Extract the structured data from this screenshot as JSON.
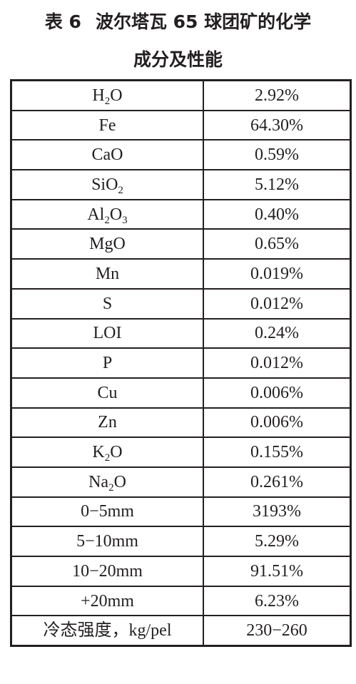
{
  "caption": {
    "label": "表 6",
    "title_line1": "波尔塔瓦 65 球团矿的化学",
    "title_line2": "成分及性能"
  },
  "rows": [
    {
      "item": "H",
      "sub": "2",
      "tail": "O",
      "value": "2.92%"
    },
    {
      "item": "Fe",
      "sub": "",
      "tail": "",
      "value": "64.30%"
    },
    {
      "item": "CaO",
      "sub": "",
      "tail": "",
      "value": "0.59%"
    },
    {
      "item": "SiO",
      "sub": "2",
      "tail": "",
      "value": "5.12%"
    },
    {
      "item": "Al",
      "sub": "2",
      "tail": "O",
      "sub2": "3",
      "value": "0.40%"
    },
    {
      "item": "MgO",
      "sub": "",
      "tail": "",
      "value": "0.65%"
    },
    {
      "item": "Mn",
      "sub": "",
      "tail": "",
      "value": "0.019%"
    },
    {
      "item": "S",
      "sub": "",
      "tail": "",
      "value": "0.012%"
    },
    {
      "item": "LOI",
      "sub": "",
      "tail": "",
      "value": "0.24%"
    },
    {
      "item": "P",
      "sub": "",
      "tail": "",
      "value": "0.012%"
    },
    {
      "item": "Cu",
      "sub": "",
      "tail": "",
      "value": "0.006%"
    },
    {
      "item": "Zn",
      "sub": "",
      "tail": "",
      "value": "0.006%"
    },
    {
      "item": "K",
      "sub": "2",
      "tail": "O",
      "value": "0.155%"
    },
    {
      "item": "Na",
      "sub": "2",
      "tail": "O",
      "value": "0.261%"
    },
    {
      "item": "0−5mm",
      "sub": "",
      "tail": "",
      "value": "3193%"
    },
    {
      "item": "5−10mm",
      "sub": "",
      "tail": "",
      "value": "5.29%"
    },
    {
      "item": "10−20mm",
      "sub": "",
      "tail": "",
      "value": "91.51%"
    },
    {
      "item": "+20mm",
      "sub": "",
      "tail": "",
      "value": "6.23%"
    },
    {
      "item": "冷态强度，kg/pel",
      "sub": "",
      "tail": "",
      "value": "230−260"
    }
  ]
}
